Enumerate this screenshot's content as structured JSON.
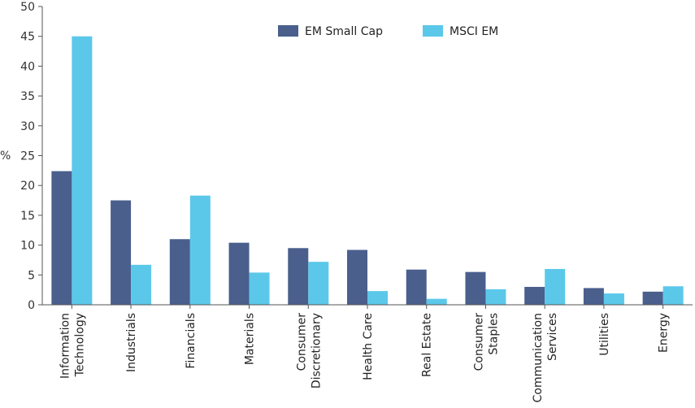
{
  "chart_data": {
    "type": "bar",
    "title": "",
    "xlabel": "",
    "ylabel": "%",
    "ylim": [
      0,
      50
    ],
    "yticks": [
      0,
      5,
      10,
      15,
      20,
      25,
      30,
      35,
      40,
      45,
      50
    ],
    "grid": false,
    "legend_position": "top-center",
    "categories": [
      [
        "Information",
        "Technology"
      ],
      [
        "Industrials"
      ],
      [
        "Financials"
      ],
      [
        "Materials"
      ],
      [
        "Consumer",
        "Discretionary"
      ],
      [
        "Health Care"
      ],
      [
        "Real Estate"
      ],
      [
        "Consumer",
        "Staples"
      ],
      [
        "Communication",
        "Services"
      ],
      [
        "Utilities"
      ],
      [
        "Energy"
      ]
    ],
    "series": [
      {
        "name": "EM Small Cap",
        "color": "#4a5f8c",
        "values": [
          22.4,
          17.5,
          11.0,
          10.4,
          9.5,
          9.2,
          5.9,
          5.5,
          3.0,
          2.8,
          2.2
        ]
      },
      {
        "name": "MSCI EM",
        "color": "#5bc8ea",
        "values": [
          45.0,
          6.7,
          18.3,
          5.4,
          7.2,
          2.3,
          1.0,
          2.6,
          6.0,
          1.9,
          3.1
        ]
      }
    ]
  }
}
